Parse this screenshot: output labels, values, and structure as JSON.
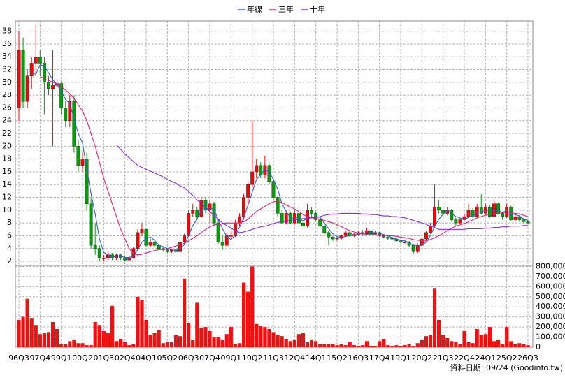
{
  "chart_data": {
    "type": "candlestick",
    "legend": [
      "年線",
      "三年",
      "十年"
    ],
    "footer": "資料日期: 09/24 (Goodinfo.tw)",
    "categories": [
      "96Q3",
      null,
      null,
      null,
      null,
      "97Q4",
      null,
      null,
      null,
      null,
      "99Q1",
      null,
      null,
      null,
      null,
      "00Q2",
      null,
      null,
      null,
      null,
      "01Q3",
      null,
      null,
      null,
      null,
      "02Q4",
      null,
      null,
      null,
      null,
      "04Q1",
      null,
      null,
      null,
      null,
      "05Q2",
      null,
      null,
      null,
      null,
      "06Q3",
      null,
      null,
      null,
      null,
      "07Q4",
      null,
      null,
      null,
      null,
      "09Q1",
      null,
      null,
      null,
      null,
      "10Q2",
      null,
      null,
      null,
      null,
      "11Q3",
      null,
      null,
      null,
      null,
      "12Q4",
      null,
      null,
      null,
      null,
      "14Q1",
      null,
      null,
      null,
      null,
      "15Q2",
      null,
      null,
      null,
      null,
      "16Q3",
      null,
      null,
      null,
      null,
      "17Q4",
      null,
      null,
      null,
      null,
      "19Q1",
      null,
      null,
      null,
      null,
      "20Q2",
      null,
      null,
      null,
      null,
      "21Q3",
      null,
      null,
      null,
      null,
      "22Q4",
      null,
      null,
      null,
      null,
      "24Q1",
      null,
      null,
      null,
      null,
      "25Q2",
      null,
      null,
      null,
      null,
      "26Q3"
    ],
    "up_color": "#ff0000",
    "down_color": "#00a000",
    "grid": true,
    "ylim": [
      1.35,
      39.6
    ],
    "yticks": [
      2,
      4,
      6,
      8,
      10,
      12,
      14,
      16,
      18,
      20,
      22,
      24,
      26,
      28,
      30,
      32,
      34,
      36,
      38
    ],
    "ohlc": [
      [
        26,
        38,
        24,
        35
      ],
      [
        35,
        37,
        26,
        27
      ],
      [
        27,
        32,
        26,
        31
      ],
      [
        31,
        34,
        29,
        33
      ],
      [
        33,
        39,
        31,
        34
      ],
      [
        34,
        35,
        31,
        33
      ],
      [
        33,
        34,
        25,
        30
      ],
      [
        30,
        31,
        28,
        29
      ],
      [
        29,
        35,
        20,
        29.5
      ],
      [
        29.5,
        30.5,
        28,
        29.8
      ],
      [
        29.8,
        30,
        25,
        26
      ],
      [
        26,
        27,
        23,
        24
      ],
      [
        24,
        28,
        23,
        27
      ],
      [
        27,
        28,
        19,
        20
      ],
      [
        20,
        21,
        16,
        17
      ],
      [
        17,
        19,
        16,
        18
      ],
      [
        18,
        19,
        10,
        11
      ],
      [
        11,
        12,
        4,
        4.5
      ],
      [
        4.5,
        8,
        3,
        4
      ],
      [
        4,
        4.5,
        2,
        2.5
      ],
      [
        2.5,
        3,
        2,
        2.5
      ],
      [
        2.5,
        3.5,
        2.2,
        3
      ],
      [
        3,
        3.3,
        2.2,
        2.5
      ],
      [
        2.5,
        3.2,
        2.2,
        3
      ],
      [
        3,
        3.2,
        2.2,
        2.5
      ],
      [
        2.5,
        2.8,
        2,
        2.2
      ],
      [
        2.2,
        2.8,
        2,
        2.5
      ],
      [
        2.5,
        4.2,
        2.4,
        4
      ],
      [
        4,
        7,
        3.8,
        6.5
      ],
      [
        6.5,
        8,
        6,
        7
      ],
      [
        7,
        7.2,
        4.2,
        4.5
      ],
      [
        4.5,
        5.5,
        4.2,
        5
      ],
      [
        5,
        5.2,
        4.2,
        4.5
      ],
      [
        4.5,
        4.8,
        3.8,
        4
      ],
      [
        4,
        4.2,
        3.5,
        3.8
      ],
      [
        3.8,
        4,
        3.3,
        3.5
      ],
      [
        3.5,
        4,
        3.3,
        3.8
      ],
      [
        3.8,
        4,
        3.3,
        3.5
      ],
      [
        3.5,
        5.2,
        3.4,
        5
      ],
      [
        5,
        6.3,
        4.6,
        6
      ],
      [
        6,
        10,
        5.8,
        9.5
      ],
      [
        9.5,
        11,
        9,
        10
      ],
      [
        10,
        10.5,
        8.5,
        9
      ],
      [
        9,
        12,
        8.8,
        11.5
      ],
      [
        11.5,
        12,
        9.5,
        10
      ],
      [
        10,
        11.5,
        8,
        11
      ],
      [
        11,
        11.3,
        7.5,
        8
      ],
      [
        8,
        8.5,
        4.8,
        5
      ],
      [
        5,
        6,
        3.8,
        4.5
      ],
      [
        4.5,
        6.5,
        4.3,
        6
      ],
      [
        6,
        6.8,
        5.5,
        6
      ],
      [
        6,
        8.5,
        5.8,
        8
      ],
      [
        8,
        9.5,
        7.5,
        9
      ],
      [
        9,
        12.5,
        8.5,
        12
      ],
      [
        12,
        14.5,
        11,
        14
      ],
      [
        14,
        24,
        13.5,
        16
      ],
      [
        16,
        18,
        15,
        17
      ],
      [
        17,
        17.5,
        15,
        15.5
      ],
      [
        15.5,
        18.5,
        15,
        17
      ],
      [
        17,
        17.3,
        14,
        14.5
      ],
      [
        14.5,
        15,
        11.5,
        12
      ],
      [
        12,
        12.3,
        9,
        9.5
      ],
      [
        9.5,
        10,
        7.8,
        8
      ],
      [
        8,
        10,
        7.8,
        9.5
      ],
      [
        9.5,
        9.8,
        7.8,
        8
      ],
      [
        8,
        10,
        7.8,
        9.5
      ],
      [
        9.5,
        9.7,
        7.8,
        8
      ],
      [
        8,
        8.3,
        7.2,
        7.5
      ],
      [
        7.5,
        11,
        7.3,
        10
      ],
      [
        10,
        10.5,
        9,
        9.5
      ],
      [
        9.5,
        9.8,
        8.2,
        8.5
      ],
      [
        8.5,
        8.8,
        7.2,
        7.5
      ],
      [
        7.5,
        7.8,
        6.2,
        6.5
      ],
      [
        6.5,
        6.8,
        4.5,
        5.8
      ],
      [
        5.8,
        6,
        5.2,
        5.5
      ],
      [
        5.5,
        5.9,
        5.2,
        5.6
      ],
      [
        5.6,
        6.2,
        5.4,
        6
      ],
      [
        6,
        6.8,
        5.8,
        6.5
      ],
      [
        6.5,
        6.7,
        5.8,
        6
      ],
      [
        6,
        6.4,
        5.8,
        6.2
      ],
      [
        6.2,
        6.8,
        6,
        6.5
      ],
      [
        6.5,
        6.9,
        6.1,
        6.3
      ],
      [
        6.3,
        7.2,
        6.1,
        6.8
      ],
      [
        6.8,
        7,
        6.1,
        6.3
      ],
      [
        6.3,
        6.7,
        6.1,
        6.5
      ],
      [
        6.5,
        6.6,
        5.8,
        6
      ],
      [
        6,
        6.2,
        5.6,
        5.8
      ],
      [
        5.8,
        6,
        5.4,
        5.6
      ],
      [
        5.6,
        5.9,
        5.3,
        5.5
      ],
      [
        5.5,
        5.7,
        5,
        5.2
      ],
      [
        5.2,
        5.4,
        4.8,
        5
      ],
      [
        5,
        5.3,
        4.8,
        5
      ],
      [
        5,
        5.2,
        4.2,
        4.5
      ],
      [
        4.5,
        4.7,
        3.2,
        3.5
      ],
      [
        3.5,
        4.8,
        3.3,
        4.5
      ],
      [
        4.5,
        5.8,
        4.3,
        5.5
      ],
      [
        5.5,
        6.8,
        5.3,
        6.5
      ],
      [
        6.5,
        8,
        6.3,
        7.5
      ],
      [
        7.5,
        14,
        7.3,
        10.5
      ],
      [
        10.5,
        11.5,
        9.5,
        10
      ],
      [
        10,
        10.5,
        9,
        9.5
      ],
      [
        9.5,
        10.5,
        9.2,
        10
      ],
      [
        10,
        10.2,
        8.2,
        8.5
      ],
      [
        8.5,
        8.8,
        7.5,
        8
      ],
      [
        8,
        8.8,
        7.8,
        8.5
      ],
      [
        8.5,
        9.5,
        8.3,
        9
      ],
      [
        9,
        11,
        8.8,
        10
      ],
      [
        10,
        10.3,
        8.8,
        9
      ],
      [
        9,
        11,
        8.8,
        10.5
      ],
      [
        10.5,
        12.5,
        9.3,
        9.5
      ],
      [
        9.5,
        11,
        9.3,
        10.5
      ],
      [
        10.5,
        10.8,
        8.8,
        9
      ],
      [
        9,
        11.5,
        8.8,
        11
      ],
      [
        11,
        11.2,
        9.3,
        9.5
      ],
      [
        9.5,
        9.8,
        8.5,
        9
      ],
      [
        9,
        11,
        8.8,
        10.5
      ],
      [
        10.5,
        10.7,
        8.3,
        8.5
      ],
      [
        8.5,
        9.3,
        8.3,
        9
      ],
      [
        9,
        9.2,
        8.2,
        8.5
      ],
      [
        8.5,
        8.8,
        8,
        8.2
      ],
      [
        8.2,
        8.5,
        7.8,
        8
      ]
    ],
    "series": [
      {
        "name": "年線",
        "color": "#3060d0",
        "values": [
          null,
          null,
          null,
          31.5,
          31.25,
          32.75,
          32.5,
          31.5,
          30.4,
          29.6,
          28.6,
          27.3,
          26.7,
          24.3,
          22,
          20.5,
          16.5,
          12.6,
          9.4,
          5.5,
          3.4,
          3,
          2.6,
          2.8,
          2.8,
          2.6,
          2.6,
          2.8,
          3.8,
          5,
          5.5,
          5.8,
          5.3,
          4.5,
          4.3,
          4,
          3.8,
          3.7,
          4,
          4.6,
          6,
          7.6,
          8.6,
          10,
          10.1,
          10.4,
          10.1,
          8.5,
          7.1,
          5.9,
          5.4,
          6.1,
          7.3,
          8.8,
          10.8,
          12.8,
          14.8,
          15.6,
          16.4,
          16,
          14.8,
          13.3,
          11,
          9.8,
          8.8,
          8.8,
          8.8,
          8.3,
          8.8,
          8.8,
          8.9,
          8.9,
          8,
          7.1,
          6.3,
          5.9,
          5.7,
          5.9,
          6,
          6.2,
          6.3,
          6.3,
          6.5,
          6.5,
          6.5,
          6.4,
          6.2,
          6,
          5.7,
          5.5,
          5.3,
          5.2,
          4.9,
          4.5,
          4.4,
          4.5,
          5,
          6,
          7.5,
          8.6,
          9.4,
          10,
          9.5,
          9,
          8.8,
          8.5,
          8.9,
          9.1,
          9.6,
          9.8,
          9.9,
          9.9,
          10,
          10,
          9.6,
          10,
          9.4,
          9.3,
          9.1,
          8.6,
          8.4
        ]
      },
      {
        "name": "三年",
        "color": "#e0207a",
        "values": [
          null,
          null,
          null,
          null,
          null,
          31,
          30.5,
          30.3,
          30,
          29.8,
          29.3,
          28.8,
          28.2,
          27.5,
          26.5,
          25.5,
          24,
          22,
          20,
          17.5,
          15,
          13,
          11,
          9,
          7,
          5.5,
          4,
          3.2,
          3,
          3.1,
          3.3,
          3.5,
          3.7,
          3.8,
          3.9,
          4,
          4.2,
          4.4,
          4.6,
          4.8,
          5.2,
          5.6,
          6,
          6.5,
          7,
          7.4,
          7.7,
          7.8,
          7.9,
          8,
          8,
          8,
          8,
          8.2,
          8.6,
          9.2,
          9.8,
          10.2,
          10.6,
          11,
          11.3,
          11.4,
          11.2,
          10.8,
          10.5,
          10.2,
          9.8,
          9.3,
          9,
          8.8,
          8.7,
          8.6,
          8.4,
          8.2,
          8,
          7.7,
          7.4,
          7.1,
          6.8,
          6.6,
          6.4,
          6.3,
          6.2,
          6.2,
          6.2,
          6.1,
          6.1,
          6,
          6,
          5.9,
          5.8,
          5.7,
          5.6,
          5.4,
          5.3,
          5.2,
          5.2,
          5.4,
          5.7,
          6,
          6.4,
          6.8,
          7.2,
          7.5,
          7.7,
          7.9,
          8.2,
          8.5,
          8.8,
          9,
          9.2,
          9.3,
          9.4,
          9.5,
          9.6,
          9.7,
          9.6,
          9.5,
          9.4,
          9.2,
          9
        ]
      },
      {
        "name": "十年",
        "color": "#8a2be2",
        "values": [
          null,
          null,
          null,
          null,
          null,
          null,
          null,
          null,
          null,
          null,
          null,
          null,
          null,
          null,
          null,
          null,
          null,
          null,
          null,
          null,
          null,
          null,
          null,
          20.2,
          19.5,
          18.8,
          18.2,
          17.6,
          17,
          16.7,
          16.4,
          16.1,
          15.8,
          15.5,
          15.2,
          14.8,
          14.5,
          14.2,
          13.8,
          13.5,
          12.9,
          12.3,
          11.6,
          11,
          10.4,
          9.8,
          9.2,
          8.6,
          8,
          7.6,
          7.2,
          6.8,
          6.5,
          6.6,
          6.8,
          7,
          7.2,
          7.4,
          7.5,
          7.7,
          7.9,
          8.1,
          8.2,
          8.3,
          8.4,
          8.5,
          8.6,
          8.7,
          8.7,
          8.8,
          8.9,
          9,
          9.2,
          9.3,
          9.4,
          9.4,
          9.5,
          9.5,
          9.5,
          9.5,
          9.5,
          9.4,
          9.4,
          9.3,
          9.3,
          9.2,
          9.1,
          9.1,
          9,
          9,
          8.9,
          8.8,
          8.6,
          8.4,
          8.2,
          8,
          7.8,
          7.5,
          7.3,
          7,
          7,
          7,
          7,
          7,
          7,
          7,
          7.1,
          7.1,
          7.1,
          7.1,
          7.2,
          7.2,
          7.3,
          7.3,
          7.4,
          7.4,
          7.5,
          7.5,
          7.5,
          7.6,
          7.6
        ]
      }
    ],
    "volume": {
      "color": "#ee1111",
      "ylim": [
        0,
        810000
      ],
      "yticks": [
        0,
        {
          "value": 100000,
          "label": "100,000"
        },
        {
          "value": 200000,
          "label": "200,000"
        },
        {
          "value": 300000,
          "label": "300,000"
        },
        {
          "value": 400000,
          "label": "400,000"
        },
        {
          "value": 500000,
          "label": "500,000"
        },
        {
          "value": 600000,
          "label": "600,000"
        },
        {
          "value": 700000,
          "label": "700,000"
        },
        {
          "value": 800000,
          "label": "800,000"
        }
      ],
      "values": [
        270000,
        300000,
        480000,
        290000,
        220000,
        130000,
        140000,
        150000,
        250000,
        180000,
        30000,
        30000,
        60000,
        70000,
        40000,
        40000,
        20000,
        20000,
        250000,
        220000,
        160000,
        140000,
        410000,
        60000,
        80000,
        50000,
        20000,
        30000,
        500000,
        470000,
        270000,
        120000,
        140000,
        170000,
        40000,
        50000,
        50000,
        120000,
        110000,
        680000,
        240000,
        70000,
        440000,
        190000,
        200000,
        160000,
        100000,
        100000,
        70000,
        130000,
        200000,
        30000,
        40000,
        640000,
        550000,
        800000,
        230000,
        210000,
        200000,
        180000,
        150000,
        120000,
        110000,
        80000,
        60000,
        70000,
        130000,
        140000,
        50000,
        70000,
        60000,
        30000,
        30000,
        30000,
        30000,
        20000,
        30000,
        20000,
        50000,
        20000,
        10000,
        20000,
        60000,
        10000,
        10000,
        60000,
        80000,
        20000,
        10000,
        20000,
        10000,
        20000,
        30000,
        10000,
        40000,
        70000,
        110000,
        120000,
        580000,
        270000,
        120000,
        90000,
        60000,
        50000,
        30000,
        160000,
        50000,
        40000,
        180000,
        120000,
        130000,
        200000,
        60000,
        70000,
        30000,
        200000,
        60000,
        30000,
        40000,
        30000,
        20000
      ]
    }
  }
}
